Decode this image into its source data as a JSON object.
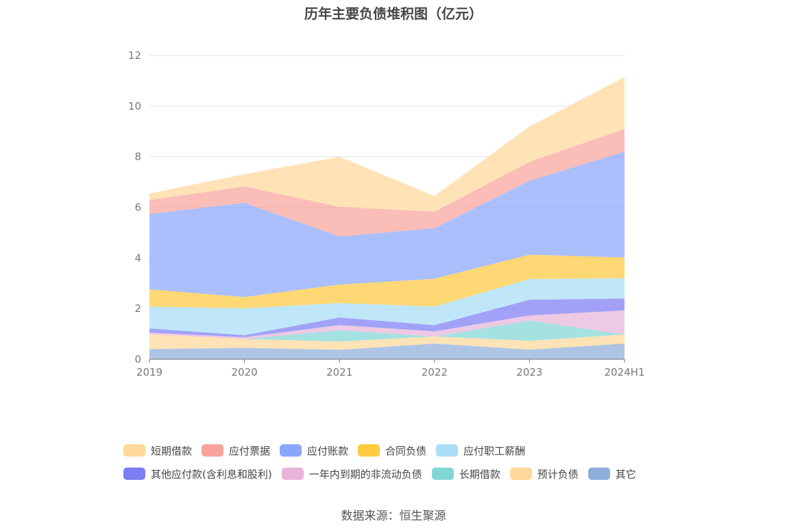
{
  "chart_data": {
    "type": "area",
    "stacked": true,
    "title": "历年主要负债堆积图（亿元）",
    "categories": [
      "2019",
      "2020",
      "2021",
      "2022",
      "2023",
      "2024H1"
    ],
    "ylim": [
      0,
      12
    ],
    "yticks": [
      "0",
      "2",
      "4",
      "6",
      "8",
      "10",
      "12"
    ],
    "grid": true,
    "legend_position": "bottom",
    "series": [
      {
        "name": "其它",
        "color": "#8fadd9",
        "values": [
          0.4,
          0.45,
          0.37,
          0.62,
          0.38,
          0.62
        ]
      },
      {
        "name": "预计负债",
        "color": "#ffd89a",
        "values": [
          0.58,
          0.35,
          0.33,
          0.28,
          0.35,
          0.36
        ]
      },
      {
        "name": "长期借款",
        "color": "#84d6d6",
        "values": [
          0.0,
          0.0,
          0.45,
          0.0,
          0.8,
          0.0
        ]
      },
      {
        "name": "一年内到期的非流动负债",
        "color": "#e8b4da",
        "values": [
          0.07,
          0.07,
          0.2,
          0.2,
          0.2,
          0.95
        ]
      },
      {
        "name": "其他应付款(含利息和股利)",
        "color": "#7d7ef4",
        "values": [
          0.17,
          0.08,
          0.3,
          0.25,
          0.62,
          0.47
        ]
      },
      {
        "name": "应付职工薪酬",
        "color": "#a8def6",
        "values": [
          0.86,
          1.06,
          0.57,
          0.73,
          0.82,
          0.8
        ]
      },
      {
        "name": "合同负债",
        "color": "#fdc93e",
        "values": [
          0.68,
          0.45,
          0.73,
          1.1,
          0.96,
          0.82
        ]
      },
      {
        "name": "应付账款",
        "color": "#8aa6fb",
        "values": [
          2.98,
          3.72,
          1.9,
          2.0,
          2.92,
          4.18
        ]
      },
      {
        "name": "应付票据",
        "color": "#f8a39c",
        "values": [
          0.55,
          0.65,
          1.17,
          0.65,
          0.75,
          0.9
        ]
      },
      {
        "name": "短期借款",
        "color": "#ffd89a",
        "values": [
          0.26,
          0.48,
          1.98,
          0.62,
          1.4,
          2.05
        ]
      }
    ]
  },
  "legend": {
    "row1": [
      {
        "label": "短期借款",
        "color": "#ffd89a"
      },
      {
        "label": "应付票据",
        "color": "#f8a39c"
      },
      {
        "label": "应付账款",
        "color": "#8aa6fb"
      },
      {
        "label": "合同负债",
        "color": "#fdc93e"
      },
      {
        "label": "应付职工薪酬",
        "color": "#a8def6"
      }
    ],
    "row2": [
      {
        "label": "其他应付款(含利息和股利)",
        "color": "#7d7ef4"
      },
      {
        "label": "一年内到期的非流动负债",
        "color": "#e8b4da"
      },
      {
        "label": "长期借款",
        "color": "#84d6d6"
      },
      {
        "label": "预计负债",
        "color": "#ffd89a"
      },
      {
        "label": "其它",
        "color": "#8fadd9"
      }
    ]
  },
  "source": "数据来源：恒生聚源"
}
